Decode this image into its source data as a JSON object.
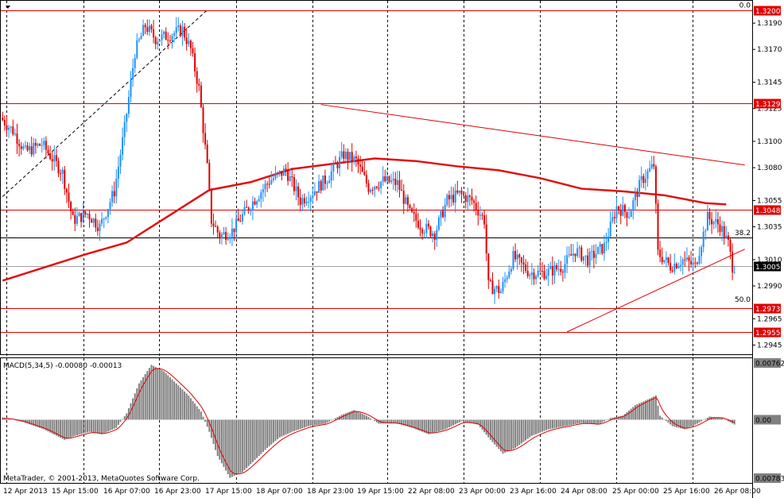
{
  "window": {
    "menu_arrow": "dropdown-arrow-icon",
    "copyright": "MetaTrader, © 2001-2013, MetaQuotes Software Corp."
  },
  "chart_data": {
    "type": "candlestick",
    "symbol_timeframe": "",
    "price_axis": {
      "ylim": [
        1.2938,
        1.3207
      ],
      "tick_labels": [
        "1.3190",
        "1.3170",
        "1.3145",
        "1.3125",
        "1.3100",
        "1.3080",
        "1.3055",
        "1.3035",
        "1.3010",
        "1.2990",
        "1.2965",
        "1.2945"
      ],
      "tick_values": [
        1.319,
        1.317,
        1.3145,
        1.3125,
        1.31,
        1.308,
        1.3055,
        1.3035,
        1.301,
        1.299,
        1.2965,
        1.2945
      ]
    },
    "time_axis": {
      "labels": [
        "12 Apr 2013",
        "15 Apr 15:00",
        "16 Apr 07:00",
        "16 Apr 23:00",
        "17 Apr 15:00",
        "18 Apr 07:00",
        "18 Apr 23:00",
        "19 Apr 15:00",
        "22 Apr 08:00",
        "23 Apr 00:00",
        "23 Apr 16:00",
        "24 Apr 08:00",
        "25 Apr 00:00",
        "25 Apr 16:00",
        "26 Apr 08:00"
      ]
    },
    "colors": {
      "bull": "#1e90ff",
      "bear": "#e00000",
      "ma": "#e01010",
      "level_line": "#e00000",
      "label_bg": "#e00000",
      "current_bg": "#000000",
      "macd_hist": "#808080",
      "macd_signal": "#e00000"
    },
    "horizontal_levels": [
      {
        "price": 1.32,
        "label": "1.3200",
        "style": "red"
      },
      {
        "price": 1.3129,
        "label": "1.3129",
        "style": "red"
      },
      {
        "price": 1.3048,
        "label": "1.3048",
        "style": "red"
      },
      {
        "price": 1.2973,
        "label": "1.2973",
        "style": "red"
      },
      {
        "price": 1.2955,
        "label": "1.2955",
        "style": "red"
      }
    ],
    "current_price": {
      "price": 1.3005,
      "label": "1.3005"
    },
    "fibonacci": {
      "levels": [
        {
          "label": "0.0",
          "price": 1.32
        },
        {
          "label": "38.2",
          "price": 1.3027
        },
        {
          "label": "50.0",
          "price": 1.2976
        }
      ]
    },
    "trendlines": [
      {
        "from": {
          "bar": 0,
          "price": 1.3058
        },
        "to": {
          "bar": 99,
          "price": 1.32
        },
        "style": "dashed-black"
      },
      {
        "from": {
          "bar": 154,
          "price": 1.3128
        },
        "to": {
          "bar": 359,
          "price": 1.3082
        },
        "style": "red"
      },
      {
        "from": {
          "bar": 273,
          "price": 1.2955
        },
        "to": {
          "bar": 359,
          "price": 1.3018
        },
        "style": "red"
      }
    ],
    "moving_average": {
      "points": [
        [
          0,
          1.2994
        ],
        [
          20,
          1.3004
        ],
        [
          40,
          1.3014
        ],
        [
          60,
          1.3023
        ],
        [
          80,
          1.3043
        ],
        [
          100,
          1.3063
        ],
        [
          120,
          1.3069
        ],
        [
          140,
          1.3079
        ],
        [
          160,
          1.3083
        ],
        [
          180,
          1.3087
        ],
        [
          200,
          1.3085
        ],
        [
          220,
          1.3081
        ],
        [
          240,
          1.3078
        ],
        [
          260,
          1.3072
        ],
        [
          280,
          1.3064
        ],
        [
          300,
          1.3062
        ],
        [
          320,
          1.3059
        ],
        [
          340,
          1.3053
        ],
        [
          350,
          1.3052
        ]
      ]
    },
    "candles_anchor": [
      [
        0,
        1.3118
      ],
      [
        6,
        1.3108
      ],
      [
        12,
        1.3092
      ],
      [
        20,
        1.3098
      ],
      [
        30,
        1.3076
      ],
      [
        35,
        1.304
      ],
      [
        42,
        1.3045
      ],
      [
        48,
        1.3035
      ],
      [
        55,
        1.3062
      ],
      [
        60,
        1.311
      ],
      [
        65,
        1.3168
      ],
      [
        70,
        1.3188
      ],
      [
        75,
        1.3178
      ],
      [
        80,
        1.318
      ],
      [
        88,
        1.3185
      ],
      [
        92,
        1.317
      ],
      [
        96,
        1.314
      ],
      [
        100,
        1.308
      ],
      [
        102,
        1.304
      ],
      [
        106,
        1.3028
      ],
      [
        112,
        1.3032
      ],
      [
        120,
        1.305
      ],
      [
        130,
        1.307
      ],
      [
        138,
        1.3078
      ],
      [
        145,
        1.3055
      ],
      [
        150,
        1.306
      ],
      [
        158,
        1.3072
      ],
      [
        166,
        1.309
      ],
      [
        172,
        1.3085
      ],
      [
        178,
        1.3065
      ],
      [
        185,
        1.307
      ],
      [
        192,
        1.3068
      ],
      [
        198,
        1.3045
      ],
      [
        204,
        1.3035
      ],
      [
        210,
        1.303
      ],
      [
        216,
        1.3055
      ],
      [
        222,
        1.306
      ],
      [
        228,
        1.3055
      ],
      [
        234,
        1.304
      ],
      [
        236,
        1.299
      ],
      [
        242,
        1.2986
      ],
      [
        248,
        1.3012
      ],
      [
        256,
        1.3
      ],
      [
        264,
        1.3
      ],
      [
        272,
        1.3005
      ],
      [
        278,
        1.3017
      ],
      [
        284,
        1.301
      ],
      [
        292,
        1.302
      ],
      [
        298,
        1.305
      ],
      [
        304,
        1.3045
      ],
      [
        310,
        1.307
      ],
      [
        316,
        1.3082
      ],
      [
        318,
        1.3015
      ],
      [
        324,
        1.3005
      ],
      [
        330,
        1.301
      ],
      [
        336,
        1.3005
      ],
      [
        342,
        1.3042
      ],
      [
        348,
        1.3036
      ],
      [
        352,
        1.3022
      ],
      [
        354,
        1.3005
      ]
    ],
    "macd": {
      "title": "MACD(5,34,5) -0.00080 -0.00013",
      "ylim": [
        -0.00783,
        0.00762
      ],
      "axis_labels": [
        "0.00762",
        "0.00",
        "0.00783"
      ],
      "anchor": [
        [
          0,
          0.0003
        ],
        [
          10,
          -0.0003
        ],
        [
          20,
          -0.0012
        ],
        [
          30,
          -0.0025
        ],
        [
          35,
          -0.002
        ],
        [
          42,
          -0.0015
        ],
        [
          48,
          -0.0018
        ],
        [
          55,
          -0.001
        ],
        [
          60,
          0.0008
        ],
        [
          66,
          0.0045
        ],
        [
          72,
          0.0068
        ],
        [
          78,
          0.006
        ],
        [
          84,
          0.0045
        ],
        [
          90,
          0.003
        ],
        [
          96,
          0.001
        ],
        [
          100,
          -0.0015
        ],
        [
          104,
          -0.0045
        ],
        [
          110,
          -0.0072
        ],
        [
          116,
          -0.0065
        ],
        [
          122,
          -0.005
        ],
        [
          128,
          -0.0035
        ],
        [
          134,
          -0.0022
        ],
        [
          140,
          -0.0015
        ],
        [
          148,
          -0.0008
        ],
        [
          156,
          -0.0005
        ],
        [
          164,
          0.0006
        ],
        [
          170,
          0.0012
        ],
        [
          176,
          0.0005
        ],
        [
          182,
          -0.0005
        ],
        [
          190,
          -0.0004
        ],
        [
          198,
          -0.001
        ],
        [
          206,
          -0.0018
        ],
        [
          214,
          -0.0012
        ],
        [
          222,
          -0.0002
        ],
        [
          230,
          -0.0006
        ],
        [
          236,
          -0.0025
        ],
        [
          242,
          -0.0042
        ],
        [
          248,
          -0.0035
        ],
        [
          256,
          -0.002
        ],
        [
          264,
          -0.0012
        ],
        [
          272,
          -0.0008
        ],
        [
          280,
          -0.0004
        ],
        [
          288,
          -0.0006
        ],
        [
          294,
          0.0002
        ],
        [
          300,
          0.0005
        ],
        [
          306,
          0.0018
        ],
        [
          312,
          0.0025
        ],
        [
          316,
          0.003
        ],
        [
          318,
          0.0005
        ],
        [
          324,
          -0.0008
        ],
        [
          330,
          -0.0012
        ],
        [
          336,
          -0.0005
        ],
        [
          342,
          0.0004
        ],
        [
          348,
          0.0002
        ],
        [
          354,
          -0.0006
        ]
      ]
    }
  }
}
